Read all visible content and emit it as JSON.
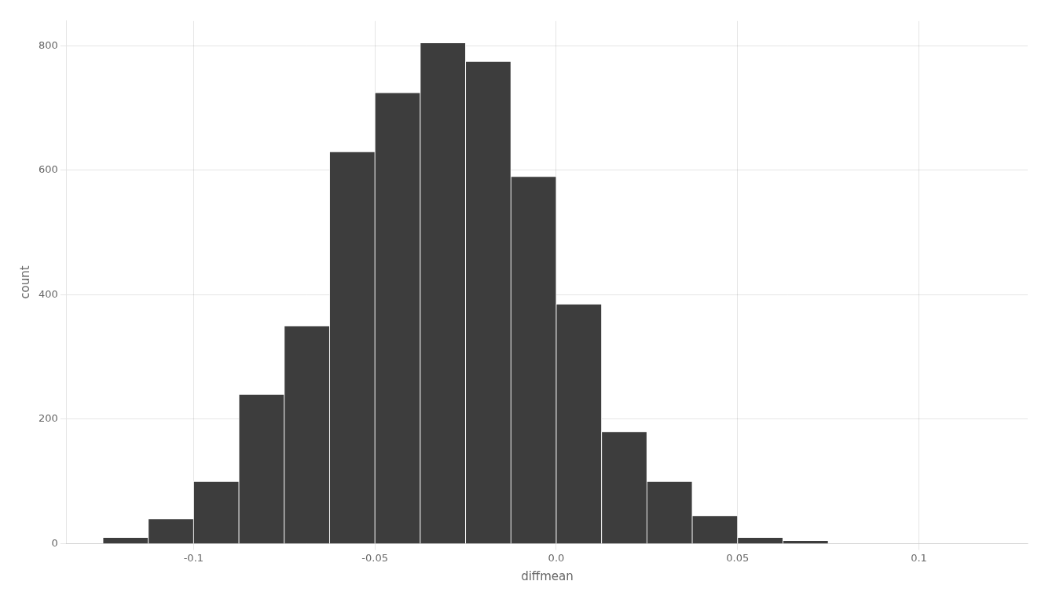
{
  "chart_data": {
    "type": "histogram",
    "xlabel": "diffmean",
    "ylabel": "count",
    "bins": [
      -0.125,
      -0.1125,
      -0.1,
      -0.0875,
      -0.075,
      -0.0625,
      -0.05,
      -0.0375,
      -0.025,
      -0.0125,
      0,
      0.0125,
      0.025,
      0.0375,
      0.05,
      0.0625,
      0.075
    ],
    "values": [
      10,
      40,
      100,
      240,
      350,
      630,
      725,
      805,
      775,
      590,
      385,
      180,
      100,
      45,
      10,
      5
    ],
    "color": "#3d3d3d",
    "xlim": [
      -0.135,
      0.13
    ],
    "ylim": [
      0,
      840
    ],
    "xticks": [
      -0.1,
      -0.05,
      {
        "value": 0,
        "label": "0.0"
      },
      0.05,
      0.1
    ],
    "yticks": [
      0,
      200,
      400,
      600,
      800
    ],
    "grid": true
  }
}
